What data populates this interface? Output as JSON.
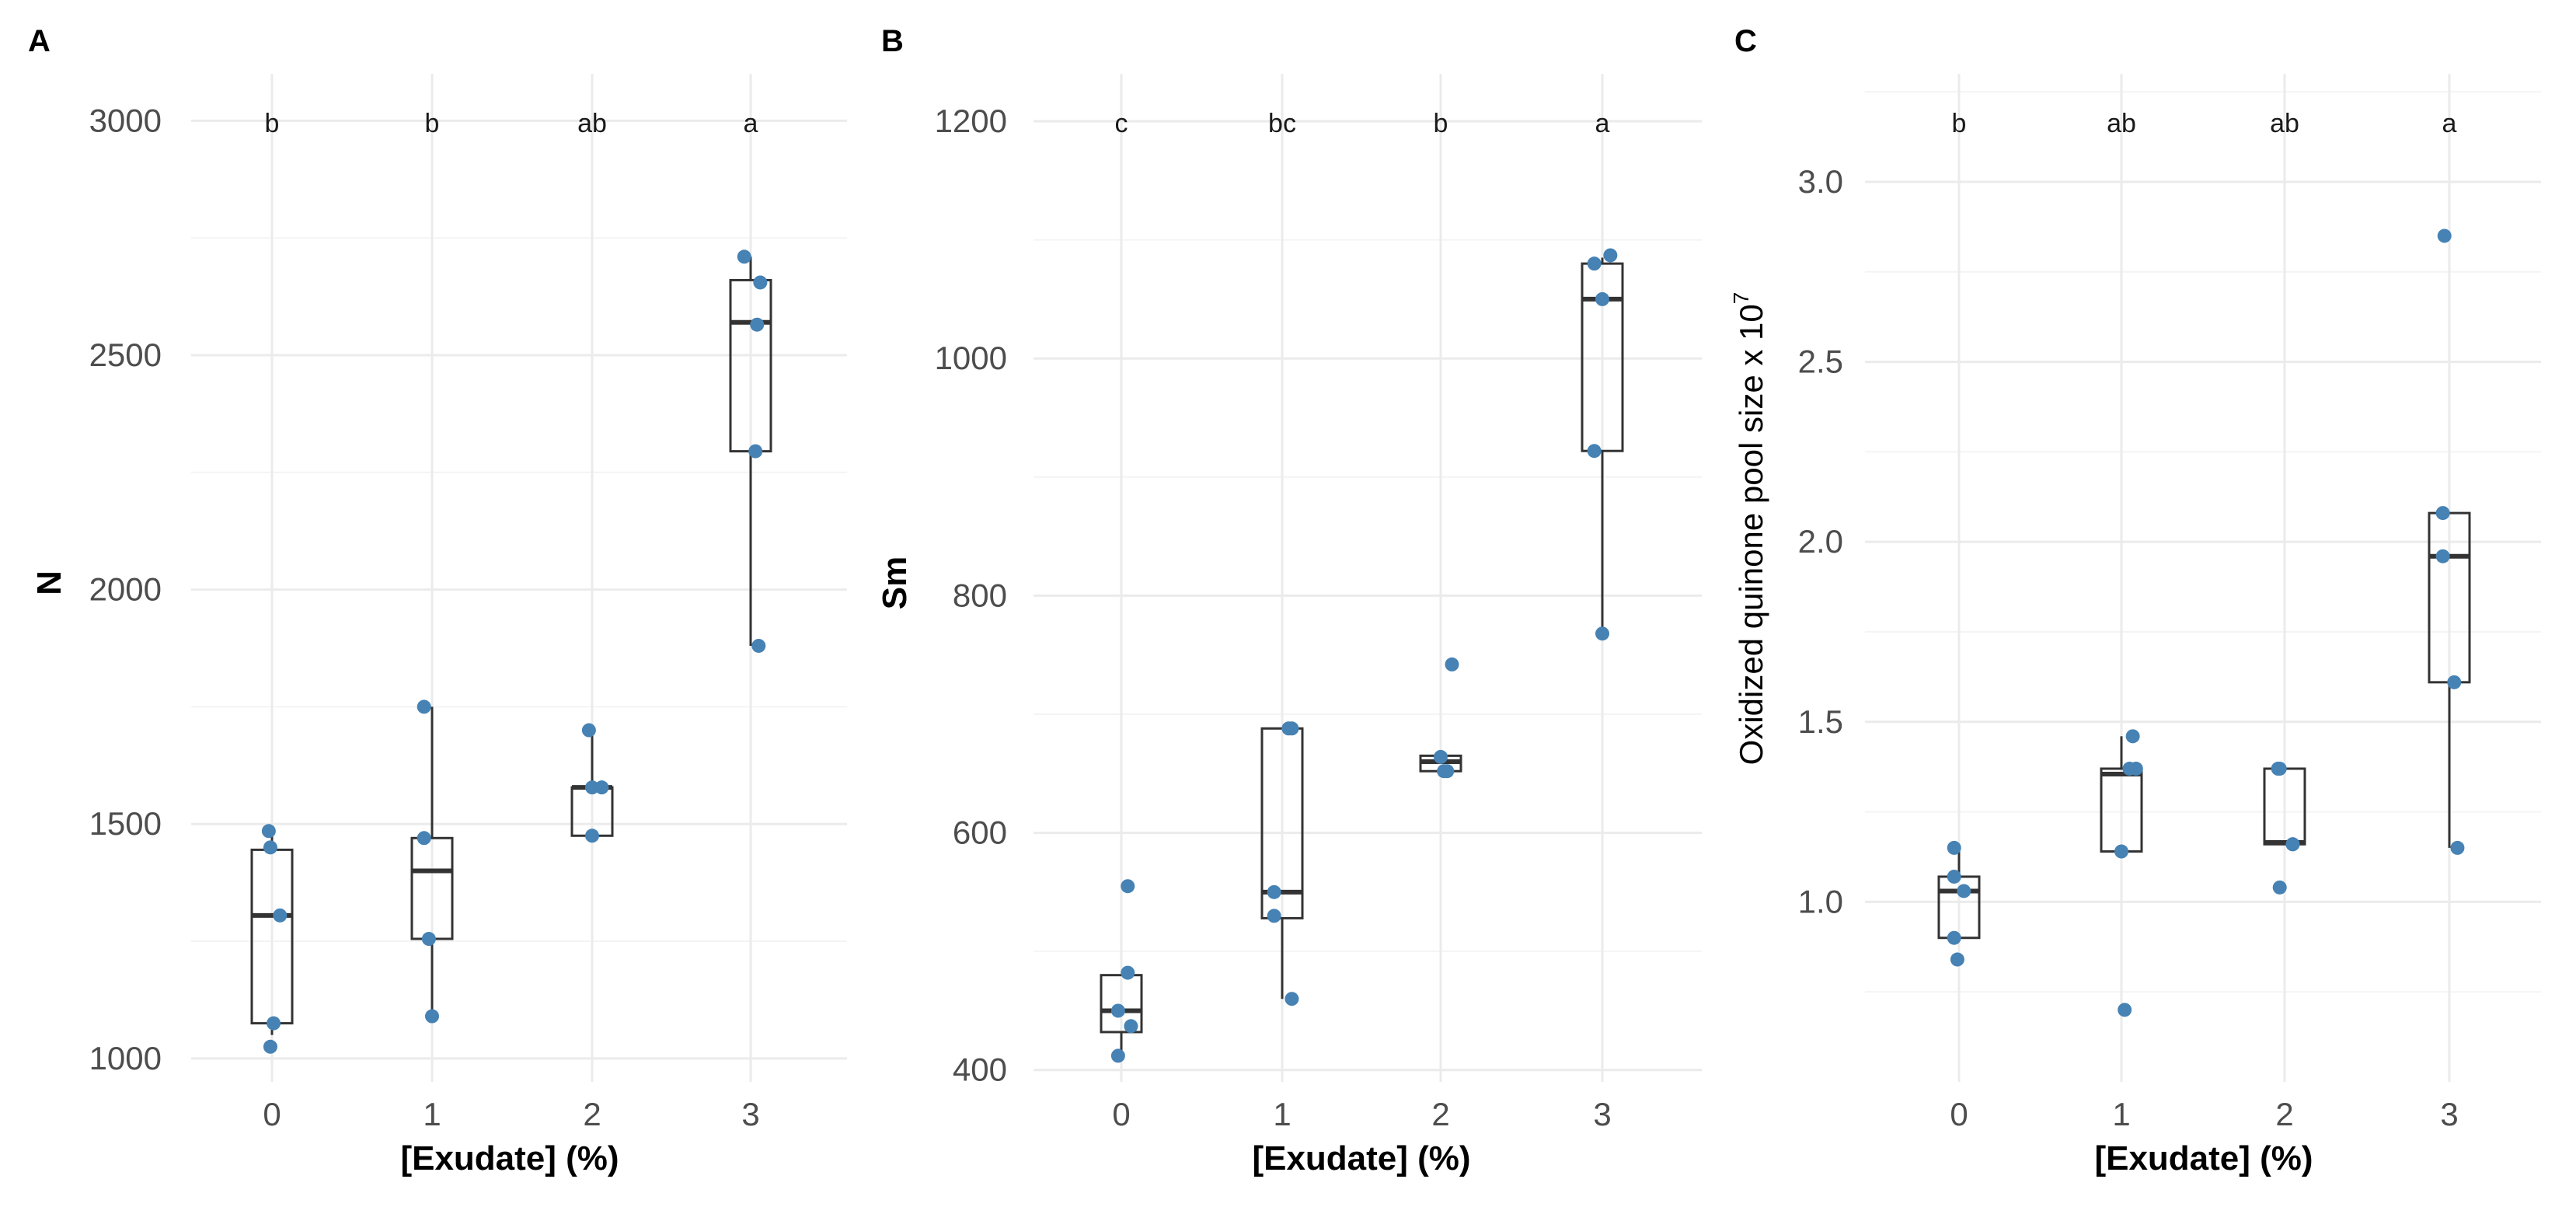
{
  "colors": {
    "point": "#4682b4",
    "box": "#333333",
    "grid_major": "#ebebeb",
    "grid_minor": "#f4f4f4"
  },
  "chart_data": [
    {
      "panel": "A",
      "type": "box",
      "xlabel": "[Exudate] (%)",
      "ylabel": "N",
      "categories": [
        "0",
        "1",
        "2",
        "3"
      ],
      "ylim": [
        950,
        3100
      ],
      "yticks": [
        1000,
        1500,
        2000,
        2500,
        3000
      ],
      "letters": [
        "b",
        "b",
        "ab",
        "a"
      ],
      "boxes": [
        {
          "whisker_low": 1050,
          "q1": 1075,
          "median": 1305,
          "q3": 1445,
          "whisker_high": 1485
        },
        {
          "whisker_low": 1090,
          "q1": 1255,
          "median": 1400,
          "q3": 1470,
          "whisker_high": 1750
        },
        {
          "whisker_low": 1475,
          "q1": 1475,
          "median": 1578,
          "q3": 1578,
          "whisker_high": 1700
        },
        {
          "whisker_low": 1880,
          "q1": 2295,
          "median": 2570,
          "q3": 2660,
          "whisker_high": 2710
        }
      ],
      "points": [
        [
          {
            "x": -0.02,
            "y": 1485
          },
          {
            "x": -0.01,
            "y": 1450
          },
          {
            "x": 0.05,
            "y": 1305
          },
          {
            "x": 0.01,
            "y": 1075
          },
          {
            "x": -0.01,
            "y": 1025
          }
        ],
        [
          {
            "x": -0.05,
            "y": 1750
          },
          {
            "x": -0.05,
            "y": 1470
          },
          {
            "x": -0.02,
            "y": 1255
          },
          {
            "x": 0.0,
            "y": 1090
          }
        ],
        [
          {
            "x": -0.02,
            "y": 1700
          },
          {
            "x": 0.0,
            "y": 1578
          },
          {
            "x": 0.06,
            "y": 1578
          },
          {
            "x": 0.0,
            "y": 1475
          }
        ],
        [
          {
            "x": -0.04,
            "y": 2710
          },
          {
            "x": 0.06,
            "y": 2655
          },
          {
            "x": 0.04,
            "y": 2565
          },
          {
            "x": 0.03,
            "y": 2295
          },
          {
            "x": 0.05,
            "y": 1880
          }
        ]
      ]
    },
    {
      "panel": "B",
      "type": "box",
      "xlabel": "[Exudate] (%)",
      "ylabel": "Sm",
      "categories": [
        "0",
        "1",
        "2",
        "3"
      ],
      "ylim": [
        390,
        1240
      ],
      "yticks": [
        400,
        600,
        800,
        1000,
        1200
      ],
      "letters": [
        "c",
        "bc",
        "b",
        "a"
      ],
      "boxes": [
        {
          "whisker_low": 415,
          "q1": 432,
          "median": 450,
          "q3": 480,
          "whisker_high": 480
        },
        {
          "whisker_low": 460,
          "q1": 528,
          "median": 550,
          "q3": 688,
          "whisker_high": 688
        },
        {
          "whisker_low": 650,
          "q1": 652,
          "median": 660,
          "q3": 665,
          "whisker_high": 665
        },
        {
          "whisker_low": 768,
          "q1": 922,
          "median": 1050,
          "q3": 1080,
          "whisker_high": 1085
        }
      ],
      "points": [
        [
          {
            "x": 0.04,
            "y": 555
          },
          {
            "x": 0.04,
            "y": 482
          },
          {
            "x": -0.02,
            "y": 450
          },
          {
            "x": 0.06,
            "y": 437
          },
          {
            "x": -0.02,
            "y": 412
          }
        ],
        [
          {
            "x": 0.04,
            "y": 688
          },
          {
            "x": 0.06,
            "y": 688
          },
          {
            "x": -0.05,
            "y": 550
          },
          {
            "x": -0.05,
            "y": 530
          },
          {
            "x": 0.06,
            "y": 460
          }
        ],
        [
          {
            "x": 0.07,
            "y": 742
          },
          {
            "x": 0.0,
            "y": 664
          },
          {
            "x": 0.02,
            "y": 652
          },
          {
            "x": 0.04,
            "y": 652
          }
        ],
        [
          {
            "x": -0.05,
            "y": 1080
          },
          {
            "x": 0.05,
            "y": 1087
          },
          {
            "x": 0.0,
            "y": 1050
          },
          {
            "x": -0.05,
            "y": 922
          },
          {
            "x": 0.0,
            "y": 768
          }
        ]
      ]
    },
    {
      "panel": "C",
      "type": "box",
      "xlabel": "[Exudate] (%)",
      "ylabel": "Oxidized quinone pool size x  10",
      "ylabel_superscript": "7",
      "categories": [
        "0",
        "1",
        "2",
        "3"
      ],
      "ylim": [
        0.5,
        3.3
      ],
      "yticks": [
        "1.0",
        "1.5",
        "2.0",
        "2.5",
        "3.0"
      ],
      "letters": [
        "b",
        "ab",
        "ab",
        "a"
      ],
      "boxes": [
        {
          "whisker_low": 0.9,
          "q1": 0.9,
          "median": 1.03,
          "q3": 1.07,
          "whisker_high": 1.15
        },
        {
          "whisker_low": 1.14,
          "q1": 1.14,
          "median": 1.355,
          "q3": 1.37,
          "whisker_high": 1.46
        },
        {
          "whisker_low": 1.16,
          "q1": 1.16,
          "median": 1.165,
          "q3": 1.37,
          "whisker_high": 1.37
        },
        {
          "whisker_low": 1.15,
          "q1": 1.61,
          "median": 1.96,
          "q3": 2.08,
          "whisker_high": 2.08
        }
      ],
      "points": [
        [
          {
            "x": -0.03,
            "y": 1.15
          },
          {
            "x": -0.03,
            "y": 1.07
          },
          {
            "x": 0.03,
            "y": 1.03
          },
          {
            "x": -0.03,
            "y": 0.9
          },
          {
            "x": -0.01,
            "y": 0.84
          }
        ],
        [
          {
            "x": 0.07,
            "y": 1.46
          },
          {
            "x": 0.05,
            "y": 1.37
          },
          {
            "x": 0.09,
            "y": 1.37
          },
          {
            "x": 0.0,
            "y": 1.14
          },
          {
            "x": 0.02,
            "y": 0.7
          }
        ],
        [
          {
            "x": -0.04,
            "y": 1.37
          },
          {
            "x": -0.03,
            "y": 1.37
          },
          {
            "x": 0.05,
            "y": 1.16
          },
          {
            "x": 0.05,
            "y": 1.16
          },
          {
            "x": -0.03,
            "y": 1.04
          }
        ],
        [
          {
            "x": -0.03,
            "y": 2.85
          },
          {
            "x": -0.04,
            "y": 2.08
          },
          {
            "x": -0.04,
            "y": 1.96
          },
          {
            "x": 0.03,
            "y": 1.61
          },
          {
            "x": 0.05,
            "y": 1.15
          }
        ]
      ]
    }
  ]
}
